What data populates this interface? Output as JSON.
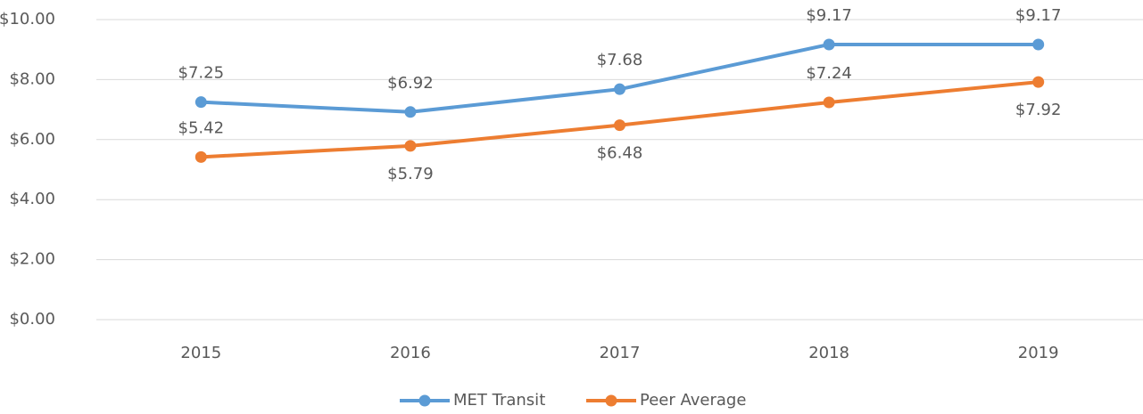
{
  "chart_data": {
    "type": "line",
    "categories": [
      "2015",
      "2016",
      "2017",
      "2018",
      "2019"
    ],
    "series": [
      {
        "name": "MET Transit",
        "color": "#5b9bd5",
        "values": [
          7.25,
          6.92,
          7.68,
          9.17,
          9.17
        ],
        "value_labels": [
          "$7.25",
          "$6.92",
          "$7.68",
          "$9.17",
          "$9.17"
        ]
      },
      {
        "name": "Peer Average",
        "color": "#ed7d31",
        "values": [
          5.42,
          5.79,
          6.48,
          7.24,
          7.92
        ],
        "value_labels": [
          "$5.42",
          "$5.79",
          "$6.48",
          "$7.24",
          "$7.92"
        ]
      }
    ],
    "ylim": [
      0,
      10
    ],
    "yticks": [
      {
        "value": 0,
        "label": "$0.00"
      },
      {
        "value": 2,
        "label": "$2.00"
      },
      {
        "value": 4,
        "label": "$4.00"
      },
      {
        "value": 6,
        "label": "$6.00"
      },
      {
        "value": 8,
        "label": "$8.00"
      },
      {
        "value": 10,
        "label": "$10.00"
      }
    ],
    "grid": true,
    "legend": "bottom"
  }
}
